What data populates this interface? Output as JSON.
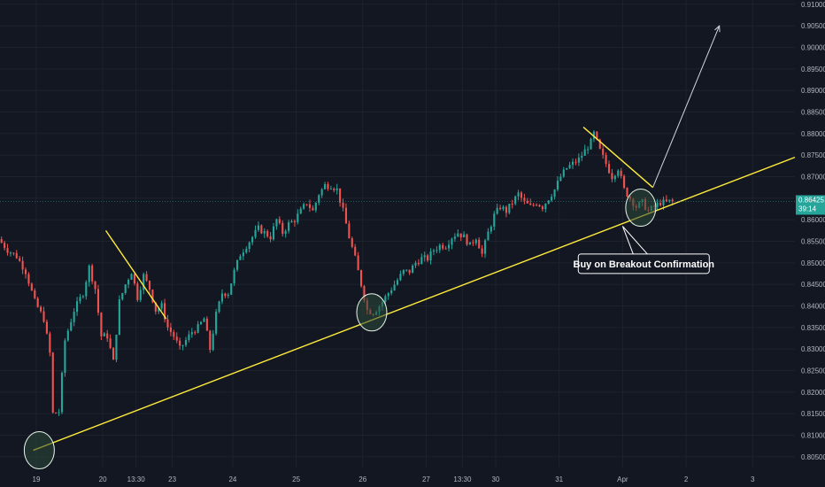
{
  "chart_data": {
    "type": "candlestick",
    "annotation_text": "Buy on Breakout Confirmation",
    "current_price": "0.86425",
    "countdown": "39:14",
    "colors": {
      "background": "#131722",
      "grid": "#1e222d",
      "up": "#26a69a",
      "down": "#ef5350",
      "trendline": "#ffeb3b",
      "circle_fill": "#2e4a3a",
      "circle_stroke": "#e8f5e9",
      "arrow": "#cfd8dc",
      "axis_text": "#b2b5be",
      "price_tag": "#26a69a"
    },
    "y_axis": {
      "min": 0.8025,
      "max": 0.911,
      "ticks": [
        "0.91000",
        "0.90500",
        "0.90000",
        "0.89500",
        "0.89000",
        "0.88500",
        "0.88000",
        "0.87500",
        "0.87000",
        "0.86500",
        "0.86000",
        "0.85500",
        "0.85000",
        "0.84500",
        "0.84000",
        "0.83500",
        "0.83000",
        "0.82500",
        "0.82000",
        "0.81500",
        "0.81000",
        "0.80500"
      ]
    },
    "x_axis": {
      "bar_range": [
        0,
        263
      ],
      "ticks": [
        {
          "label": "19",
          "bar": 12
        },
        {
          "label": "20",
          "bar": 34
        },
        {
          "label": "13:30",
          "bar": 45
        },
        {
          "label": "23",
          "bar": 57
        },
        {
          "label": "24",
          "bar": 77
        },
        {
          "label": "25",
          "bar": 98
        },
        {
          "label": "26",
          "bar": 120
        },
        {
          "label": "27",
          "bar": 141
        },
        {
          "label": "13:30",
          "bar": 153
        },
        {
          "label": "30",
          "bar": 164
        },
        {
          "label": "31",
          "bar": 185
        },
        {
          "label": "Apr",
          "bar": 206
        },
        {
          "label": "2",
          "bar": 227
        },
        {
          "label": "3",
          "bar": 249
        }
      ]
    },
    "price_path": [
      [
        0,
        0.8555
      ],
      [
        3,
        0.853
      ],
      [
        6,
        0.8515
      ],
      [
        9,
        0.848
      ],
      [
        12,
        0.841
      ],
      [
        15,
        0.837
      ],
      [
        17,
        0.829
      ],
      [
        18,
        0.815
      ],
      [
        20,
        0.8155
      ],
      [
        22,
        0.832
      ],
      [
        25,
        0.839
      ],
      [
        28,
        0.843
      ],
      [
        30,
        0.849
      ],
      [
        32,
        0.844
      ],
      [
        34,
        0.833
      ],
      [
        36,
        0.833
      ],
      [
        38,
        0.827
      ],
      [
        40,
        0.841
      ],
      [
        42,
        0.845
      ],
      [
        44,
        0.848
      ],
      [
        46,
        0.842
      ],
      [
        48,
        0.847
      ],
      [
        50,
        0.844
      ],
      [
        52,
        0.839
      ],
      [
        54,
        0.84
      ],
      [
        56,
        0.835
      ],
      [
        58,
        0.833
      ],
      [
        60,
        0.83
      ],
      [
        62,
        0.832
      ],
      [
        64,
        0.834
      ],
      [
        66,
        0.835
      ],
      [
        68,
        0.837
      ],
      [
        70,
        0.83
      ],
      [
        72,
        0.838
      ],
      [
        74,
        0.843
      ],
      [
        76,
        0.843
      ],
      [
        78,
        0.848
      ],
      [
        80,
        0.852
      ],
      [
        82,
        0.854
      ],
      [
        84,
        0.856
      ],
      [
        86,
        0.858
      ],
      [
        88,
        0.857
      ],
      [
        90,
        0.856
      ],
      [
        92,
        0.86
      ],
      [
        94,
        0.857
      ],
      [
        96,
        0.859
      ],
      [
        98,
        0.86
      ],
      [
        100,
        0.862
      ],
      [
        102,
        0.864
      ],
      [
        104,
        0.862
      ],
      [
        106,
        0.866
      ],
      [
        108,
        0.868
      ],
      [
        110,
        0.868
      ],
      [
        112,
        0.867
      ],
      [
        114,
        0.862
      ],
      [
        116,
        0.856
      ],
      [
        118,
        0.851
      ],
      [
        120,
        0.845
      ],
      [
        122,
        0.839
      ],
      [
        124,
        0.8385
      ],
      [
        126,
        0.84
      ],
      [
        128,
        0.842
      ],
      [
        130,
        0.844
      ],
      [
        132,
        0.846
      ],
      [
        134,
        0.848
      ],
      [
        136,
        0.848
      ],
      [
        138,
        0.85
      ],
      [
        140,
        0.851
      ],
      [
        142,
        0.851
      ],
      [
        144,
        0.853
      ],
      [
        146,
        0.854
      ],
      [
        148,
        0.854
      ],
      [
        150,
        0.856
      ],
      [
        152,
        0.857
      ],
      [
        154,
        0.856
      ],
      [
        156,
        0.854
      ],
      [
        158,
        0.856
      ],
      [
        160,
        0.852
      ],
      [
        162,
        0.857
      ],
      [
        164,
        0.861
      ],
      [
        166,
        0.863
      ],
      [
        168,
        0.862
      ],
      [
        170,
        0.864
      ],
      [
        172,
        0.866
      ],
      [
        174,
        0.864
      ],
      [
        176,
        0.863
      ],
      [
        178,
        0.864
      ],
      [
        180,
        0.863
      ],
      [
        182,
        0.865
      ],
      [
        184,
        0.867
      ],
      [
        186,
        0.87
      ],
      [
        188,
        0.872
      ],
      [
        190,
        0.873
      ],
      [
        192,
        0.874
      ],
      [
        194,
        0.876
      ],
      [
        196,
        0.878
      ],
      [
        197,
        0.88
      ],
      [
        199,
        0.876
      ],
      [
        201,
        0.873
      ],
      [
        203,
        0.87
      ],
      [
        205,
        0.872
      ],
      [
        207,
        0.867
      ],
      [
        209,
        0.865
      ],
      [
        211,
        0.863
      ],
      [
        213,
        0.864
      ],
      [
        215,
        0.862
      ],
      [
        217,
        0.863
      ],
      [
        219,
        0.864
      ],
      [
        221,
        0.864
      ],
      [
        222,
        0.86425
      ]
    ],
    "overlays": {
      "support_line": [
        [
          11,
          0.8065
        ],
        [
          263,
          0.8745
        ]
      ],
      "resistance_lines": [
        [
          [
            35,
            0.8575
          ],
          [
            55,
            0.837
          ]
        ],
        [
          [
            193,
            0.8815
          ],
          [
            216,
            0.8675
          ]
        ]
      ],
      "circles": [
        {
          "bar": 13,
          "price": 0.8065
        },
        {
          "bar": 123,
          "price": 0.8385
        },
        {
          "bar": 212,
          "price": 0.8628
        }
      ],
      "arrow": [
        [
          216,
          0.8675
        ],
        [
          238,
          0.905
        ]
      ],
      "callout": {
        "bar": 213,
        "price": 0.8498,
        "pointer_bar": 206,
        "pointer_price": 0.8585
      }
    }
  }
}
